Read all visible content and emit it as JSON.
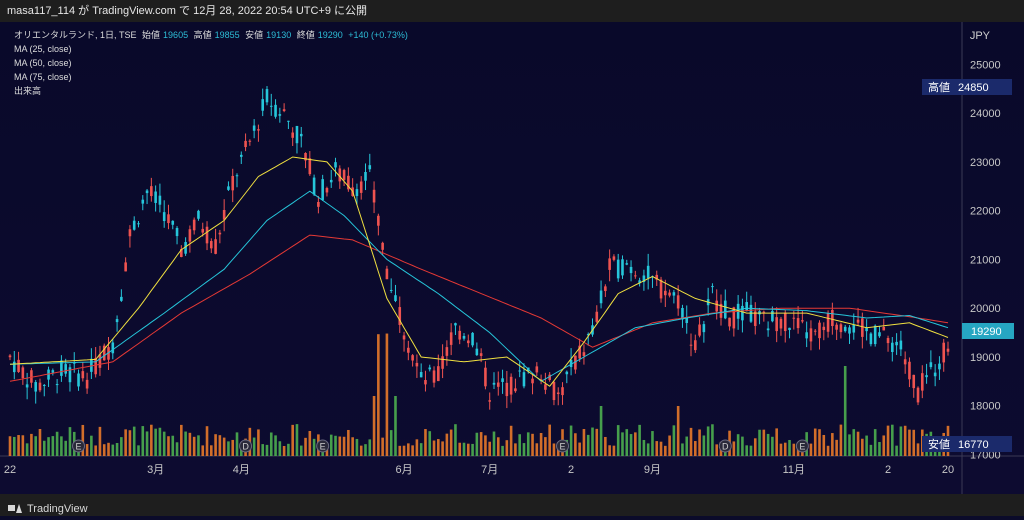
{
  "header": {
    "title": "masa117_114 が TradingView.com で 12月 28, 2022 20:54 UTC+9 に公開"
  },
  "legend": {
    "symbol": "オリエンタルランド, 1日, TSE",
    "open_label": "始値",
    "open_value": "19605",
    "high_label": "高値",
    "high_value": "19855",
    "low_label": "安値",
    "low_value": "19130",
    "close_label": "終値",
    "close_value": "19290",
    "change": "+140 (+0.73%)",
    "ma25": "MA (25, close)",
    "ma50": "MA (50, close)",
    "ma75": "MA (75, close)",
    "volume": "出来高"
  },
  "axis": {
    "currency": "JPY"
  },
  "badges": {
    "high_label": "高値",
    "high_value": "24850",
    "low_label": "安値",
    "low_value": "16770",
    "last_value": "19290"
  },
  "footer": {
    "brand": "TradingView"
  },
  "colors": {
    "up": "#ef5350",
    "down": "#26c6da",
    "ma25": "#f0e040",
    "ma50": "#26c6da",
    "ma75": "#e53935",
    "vol_up": "#e8792a",
    "vol_down": "#4caf50"
  },
  "chart_data": {
    "type": "candlestick",
    "y_ticks": [
      17000,
      18000,
      19000,
      20000,
      21000,
      22000,
      23000,
      24000,
      25000
    ],
    "ylim": [
      16600,
      25500
    ],
    "x_ticks": [
      "22",
      "3月",
      "4月",
      "6月",
      "7月",
      "2",
      "9月",
      "11月",
      "2",
      "20"
    ],
    "event_markers": [
      "E",
      "D",
      "E",
      "E",
      "D",
      "E"
    ],
    "price_path": [
      [
        0,
        19000
      ],
      [
        6,
        18400
      ],
      [
        12,
        18700
      ],
      [
        18,
        18600
      ],
      [
        24,
        19300
      ],
      [
        28,
        21500
      ],
      [
        32,
        22400
      ],
      [
        36,
        22000
      ],
      [
        40,
        21200
      ],
      [
        44,
        21800
      ],
      [
        48,
        21300
      ],
      [
        52,
        22600
      ],
      [
        56,
        23400
      ],
      [
        60,
        24300
      ],
      [
        64,
        24000
      ],
      [
        68,
        23400
      ],
      [
        72,
        22300
      ],
      [
        76,
        22800
      ],
      [
        80,
        22500
      ],
      [
        84,
        22700
      ],
      [
        88,
        20800
      ],
      [
        92,
        19600
      ],
      [
        96,
        18500
      ],
      [
        100,
        18600
      ],
      [
        104,
        19600
      ],
      [
        108,
        19400
      ],
      [
        112,
        18300
      ],
      [
        116,
        18400
      ],
      [
        120,
        18600
      ],
      [
        124,
        18700
      ],
      [
        128,
        18200
      ],
      [
        132,
        18900
      ],
      [
        136,
        19500
      ],
      [
        140,
        20800
      ],
      [
        144,
        20900
      ],
      [
        148,
        20700
      ],
      [
        152,
        20400
      ],
      [
        156,
        20200
      ],
      [
        160,
        19200
      ],
      [
        164,
        20300
      ],
      [
        168,
        19800
      ],
      [
        172,
        19900
      ],
      [
        176,
        19700
      ],
      [
        180,
        19800
      ],
      [
        184,
        19600
      ],
      [
        188,
        19400
      ],
      [
        192,
        19800
      ],
      [
        196,
        19700
      ],
      [
        200,
        19500
      ],
      [
        204,
        19400
      ],
      [
        208,
        19200
      ],
      [
        212,
        18300
      ],
      [
        216,
        18800
      ],
      [
        219,
        19290
      ]
    ],
    "ma25_path": [
      [
        0,
        18850
      ],
      [
        20,
        18950
      ],
      [
        30,
        20000
      ],
      [
        40,
        21200
      ],
      [
        50,
        21800
      ],
      [
        58,
        22700
      ],
      [
        66,
        23100
      ],
      [
        74,
        23000
      ],
      [
        80,
        22400
      ],
      [
        88,
        20200
      ],
      [
        96,
        19000
      ],
      [
        106,
        18900
      ],
      [
        116,
        19000
      ],
      [
        126,
        18400
      ],
      [
        134,
        19300
      ],
      [
        142,
        20300
      ],
      [
        150,
        20650
      ],
      [
        160,
        20200
      ],
      [
        172,
        19900
      ],
      [
        186,
        19900
      ],
      [
        200,
        19600
      ],
      [
        210,
        19700
      ],
      [
        219,
        19400
      ]
    ],
    "ma50_path": [
      [
        0,
        18850
      ],
      [
        20,
        18900
      ],
      [
        36,
        19900
      ],
      [
        50,
        20800
      ],
      [
        60,
        21800
      ],
      [
        70,
        22400
      ],
      [
        78,
        21900
      ],
      [
        88,
        21000
      ],
      [
        100,
        20300
      ],
      [
        112,
        19500
      ],
      [
        124,
        18500
      ],
      [
        134,
        19000
      ],
      [
        146,
        19600
      ],
      [
        158,
        19800
      ],
      [
        172,
        20000
      ],
      [
        186,
        19950
      ],
      [
        200,
        19800
      ],
      [
        210,
        19850
      ],
      [
        219,
        19600
      ]
    ],
    "ma75_path": [
      [
        0,
        18500
      ],
      [
        24,
        18900
      ],
      [
        40,
        19900
      ],
      [
        56,
        20700
      ],
      [
        70,
        21500
      ],
      [
        80,
        21400
      ],
      [
        96,
        20800
      ],
      [
        110,
        20300
      ],
      [
        124,
        19800
      ],
      [
        136,
        19200
      ],
      [
        150,
        19700
      ],
      [
        164,
        19900
      ],
      [
        180,
        20000
      ],
      [
        196,
        20000
      ],
      [
        212,
        19800
      ],
      [
        219,
        19700
      ]
    ]
  }
}
